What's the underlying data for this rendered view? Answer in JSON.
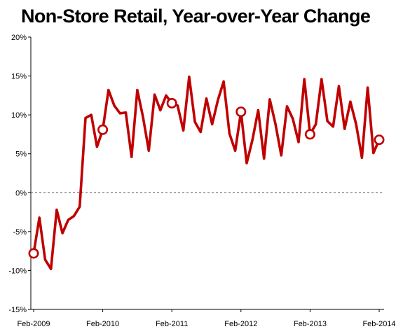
{
  "chart_data": {
    "type": "line",
    "title": "Non-Store Retail, Year-over-Year Change",
    "xlabel": "",
    "ylabel": "",
    "ylim": [
      -15,
      20
    ],
    "y_ticks": [
      "20%",
      "15%",
      "10%",
      "5%",
      "0%",
      "-5%",
      "-10%",
      "-15%"
    ],
    "y_tick_values": [
      20,
      15,
      10,
      5,
      0,
      -5,
      -10,
      -15
    ],
    "x_ticks": [
      "Feb-2009",
      "Feb-2010",
      "Feb-2011",
      "Feb-2012",
      "Feb-2013",
      "Feb-2014"
    ],
    "grid": false,
    "zero_line": "dashed",
    "line_color": "#c00000",
    "x": [
      "2009-02",
      "2009-03",
      "2009-04",
      "2009-05",
      "2009-06",
      "2009-07",
      "2009-08",
      "2009-09",
      "2009-10",
      "2009-11",
      "2009-12",
      "2010-01",
      "2010-02",
      "2010-03",
      "2010-04",
      "2010-05",
      "2010-06",
      "2010-07",
      "2010-08",
      "2010-09",
      "2010-10",
      "2010-11",
      "2010-12",
      "2011-01",
      "2011-02",
      "2011-03",
      "2011-04",
      "2011-05",
      "2011-06",
      "2011-07",
      "2011-08",
      "2011-09",
      "2011-10",
      "2011-11",
      "2011-12",
      "2012-01",
      "2012-02",
      "2012-03",
      "2012-04",
      "2012-05",
      "2012-06",
      "2012-07",
      "2012-08",
      "2012-09",
      "2012-10",
      "2012-11",
      "2012-12",
      "2013-01",
      "2013-02",
      "2013-03",
      "2013-04",
      "2013-05",
      "2013-06",
      "2013-07",
      "2013-08",
      "2013-09",
      "2013-10",
      "2013-11",
      "2013-12",
      "2014-01",
      "2014-02"
    ],
    "values": [
      -7.8,
      -3.2,
      -8.6,
      -9.8,
      -2.2,
      -5.2,
      -3.5,
      -3.0,
      -1.8,
      9.6,
      10.0,
      5.9,
      8.1,
      13.2,
      11.2,
      10.2,
      10.3,
      4.6,
      13.2,
      9.7,
      5.4,
      12.6,
      10.6,
      12.5,
      11.5,
      11.2,
      8.0,
      14.9,
      9.1,
      7.8,
      12.1,
      8.8,
      11.9,
      14.3,
      7.6,
      5.4,
      10.4,
      3.8,
      6.8,
      10.6,
      4.4,
      12.0,
      8.8,
      4.8,
      11.1,
      9.5,
      6.5,
      14.6,
      7.5,
      8.8,
      14.6,
      9.2,
      8.5,
      13.7,
      8.2,
      11.7,
      8.8,
      4.5,
      13.5,
      5.1,
      6.8
    ],
    "markers": [
      "2009-02",
      "2010-02",
      "2011-02",
      "2012-02",
      "2013-02",
      "2014-02"
    ]
  }
}
